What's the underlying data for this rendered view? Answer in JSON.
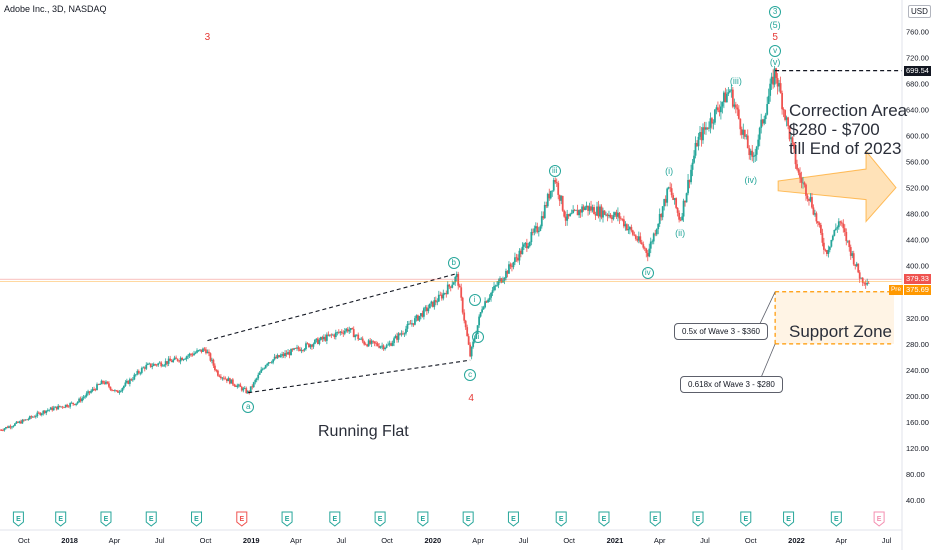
{
  "header": {
    "title": "Adobe Inc., 3D, NASDAQ",
    "currency": "USD"
  },
  "annotations": {
    "correction": [
      "Correction Area",
      "$280 - $700",
      "till End of 2023"
    ],
    "support_zone": "Support Zone",
    "running_flat": "Running Flat",
    "fib_05": "0.5x of Wave 3 - $360",
    "fib_0618": "0.618x of Wave 3 - $280"
  },
  "price_labels": {
    "last": "379.33",
    "pre_tag": "Pre",
    "pre": "375.69",
    "high": "699.54"
  },
  "colors": {
    "up": "#26a69a",
    "down": "#ef5350",
    "accent": "#ff9800",
    "wave_red": "#e53935"
  },
  "wave_labels": [
    {
      "text": "3",
      "style": "red",
      "date": "2018-10-05",
      "price": 750
    },
    {
      "text": "4",
      "style": "red",
      "date": "2020-03-18",
      "price": 195
    },
    {
      "text": "a",
      "style": "circle",
      "date": "2018-12-26",
      "price": 183
    },
    {
      "text": "b",
      "style": "circle",
      "date": "2020-02-12",
      "price": 404
    },
    {
      "text": "c",
      "style": "circle",
      "date": "2020-03-16",
      "price": 232
    },
    {
      "text": "i",
      "style": "circle",
      "date": "2020-03-25",
      "price": 348
    },
    {
      "text": "ii",
      "style": "circle",
      "date": "2020-03-31",
      "price": 290
    },
    {
      "text": "iii",
      "style": "circle",
      "date": "2020-09-02",
      "price": 546
    },
    {
      "text": "iv",
      "style": "circle",
      "date": "2021-03-08",
      "price": 389
    },
    {
      "text": "(i)",
      "style": "teal",
      "date": "2021-04-20",
      "price": 546
    },
    {
      "text": "(ii)",
      "style": "teal",
      "date": "2021-05-12",
      "price": 450
    },
    {
      "text": "(iii)",
      "style": "teal",
      "date": "2021-09-01",
      "price": 683
    },
    {
      "text": "(iv)",
      "style": "teal",
      "date": "2021-10-01",
      "price": 532
    },
    {
      "text": "(v)",
      "style": "teal",
      "date": "2021-11-19",
      "price": 713
    },
    {
      "text": "v",
      "style": "circle",
      "date": "2021-11-19",
      "price": 729
    },
    {
      "text": "5",
      "style": "red",
      "date": "2021-11-19",
      "price": 750
    },
    {
      "text": "(5)",
      "style": "teal",
      "date": "2021-11-19",
      "price": 770
    },
    {
      "text": "3",
      "style": "circle",
      "date": "2021-11-19",
      "price": 790
    }
  ],
  "chart_data": {
    "type": "candlestick",
    "title": "Adobe Inc., 3D, NASDAQ",
    "x_axis_labels": [
      "Oct",
      "2018",
      "Apr",
      "Jul",
      "Oct",
      "2019",
      "Apr",
      "Jul",
      "Oct",
      "2020",
      "Apr",
      "Jul",
      "Oct",
      "2021",
      "Apr",
      "Jul",
      "Oct",
      "2022",
      "Apr",
      "Jul"
    ],
    "x_axis_dates": [
      "2017-10-01",
      "2018-01-01",
      "2018-04-01",
      "2018-07-01",
      "2018-10-01",
      "2019-01-01",
      "2019-04-01",
      "2019-07-01",
      "2019-10-01",
      "2020-01-01",
      "2020-04-01",
      "2020-07-01",
      "2020-10-01",
      "2021-01-01",
      "2021-04-01",
      "2021-07-01",
      "2021-10-01",
      "2022-01-01",
      "2022-04-01",
      "2022-07-01"
    ],
    "xlim": [
      "2017-08-14",
      "2022-08-01"
    ],
    "y_axis_labels": [
      "40.00",
      "80.00",
      "120.00",
      "160.00",
      "200.00",
      "240.00",
      "280.00",
      "320.00",
      "360.00",
      "400.00",
      "440.00",
      "480.00",
      "520.00",
      "560.00",
      "600.00",
      "640.00",
      "680.00",
      "720.00",
      "760.00"
    ],
    "y_axis_values": [
      40,
      80,
      120,
      160,
      200,
      240,
      280,
      320,
      360,
      400,
      440,
      480,
      520,
      560,
      600,
      640,
      680,
      720,
      760
    ],
    "ylim": [
      28,
      808
    ],
    "price_path": [
      [
        "2017-08-14",
        148
      ],
      [
        "2017-10-01",
        162
      ],
      [
        "2017-11-15",
        178
      ],
      [
        "2018-01-15",
        190
      ],
      [
        "2018-03-10",
        222
      ],
      [
        "2018-04-05",
        205
      ],
      [
        "2018-06-01",
        245
      ],
      [
        "2018-08-01",
        255
      ],
      [
        "2018-10-01",
        272
      ],
      [
        "2018-10-25",
        235
      ],
      [
        "2018-12-26",
        205
      ],
      [
        "2019-02-01",
        252
      ],
      [
        "2019-05-01",
        280
      ],
      [
        "2019-07-15",
        303
      ],
      [
        "2019-08-15",
        282
      ],
      [
        "2019-10-01",
        276
      ],
      [
        "2019-12-01",
        320
      ],
      [
        "2020-01-20",
        355
      ],
      [
        "2020-02-19",
        384
      ],
      [
        "2020-03-16",
        262
      ],
      [
        "2020-04-10",
        340
      ],
      [
        "2020-06-01",
        395
      ],
      [
        "2020-08-01",
        460
      ],
      [
        "2020-09-02",
        536
      ],
      [
        "2020-09-25",
        470
      ],
      [
        "2020-11-01",
        490
      ],
      [
        "2021-01-10",
        475
      ],
      [
        "2021-03-08",
        420
      ],
      [
        "2021-04-20",
        520
      ],
      [
        "2021-05-12",
        470
      ],
      [
        "2021-06-15",
        590
      ],
      [
        "2021-08-20",
        670
      ],
      [
        "2021-10-04",
        560
      ],
      [
        "2021-11-19",
        699.54
      ],
      [
        "2022-01-05",
        540
      ],
      [
        "2022-01-30",
        500
      ],
      [
        "2022-03-01",
        420
      ],
      [
        "2022-03-28",
        470
      ],
      [
        "2022-05-10",
        380
      ],
      [
        "2022-05-26",
        375.69
      ]
    ],
    "price_lines": [
      {
        "label": "379.33",
        "value": 379.33
      },
      {
        "label": "375.69",
        "value": 375.69,
        "tag": "Pre"
      },
      {
        "label": "699.54",
        "value": 699.54
      }
    ],
    "zones": {
      "support_zone": [
        280,
        360
      ],
      "correction_area": [
        280,
        700
      ]
    },
    "flat_channel": {
      "upper": [
        [
          "2018-10-05",
          285
        ],
        [
          "2020-02-19",
          388
        ]
      ],
      "lower": [
        [
          "2018-12-26",
          205
        ],
        [
          "2020-03-16",
          255
        ]
      ]
    },
    "earnings_dates": [
      "2017-09-20",
      "2017-12-14",
      "2018-03-15",
      "2018-06-14",
      "2018-09-13",
      "2018-12-13",
      "2019-03-14",
      "2019-06-18",
      "2019-09-17",
      "2019-12-12",
      "2020-03-12",
      "2020-06-11",
      "2020-09-15",
      "2020-12-10",
      "2021-03-23",
      "2021-06-17",
      "2021-09-21",
      "2021-12-16",
      "2022-03-22",
      "2022-06-16"
    ],
    "earnings_label": "E"
  }
}
